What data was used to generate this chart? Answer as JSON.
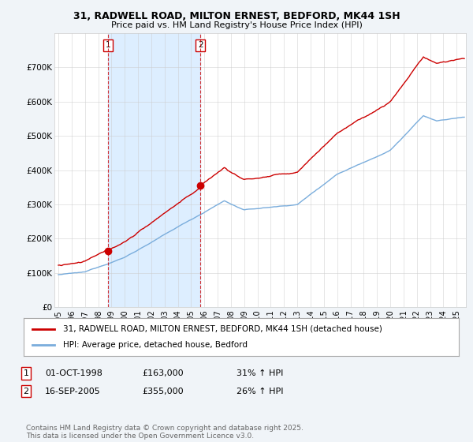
{
  "title_line1": "31, RADWELL ROAD, MILTON ERNEST, BEDFORD, MK44 1SH",
  "title_line2": "Price paid vs. HM Land Registry's House Price Index (HPI)",
  "ylim": [
    0,
    800000
  ],
  "yticks": [
    0,
    100000,
    200000,
    300000,
    400000,
    500000,
    600000,
    700000
  ],
  "ytick_labels": [
    "£0",
    "£100K",
    "£200K",
    "£300K",
    "£400K",
    "£500K",
    "£600K",
    "£700K"
  ],
  "red_color": "#cc0000",
  "blue_color": "#7aaddc",
  "shade_color": "#ddeeff",
  "purchase1_year": 1998.75,
  "purchase1_price": 163000,
  "purchase2_year": 2005.71,
  "purchase2_price": 355000,
  "legend_line1": "31, RADWELL ROAD, MILTON ERNEST, BEDFORD, MK44 1SH (detached house)",
  "legend_line2": "HPI: Average price, detached house, Bedford",
  "label1_date": "01-OCT-1998",
  "label1_price": "£163,000",
  "label1_hpi": "31% ↑ HPI",
  "label2_date": "16-SEP-2005",
  "label2_price": "£355,000",
  "label2_hpi": "26% ↑ HPI",
  "footer": "Contains HM Land Registry data © Crown copyright and database right 2025.\nThis data is licensed under the Open Government Licence v3.0.",
  "bg_color": "#f0f4f8",
  "plot_bg": "#ffffff",
  "grid_color": "#cccccc"
}
